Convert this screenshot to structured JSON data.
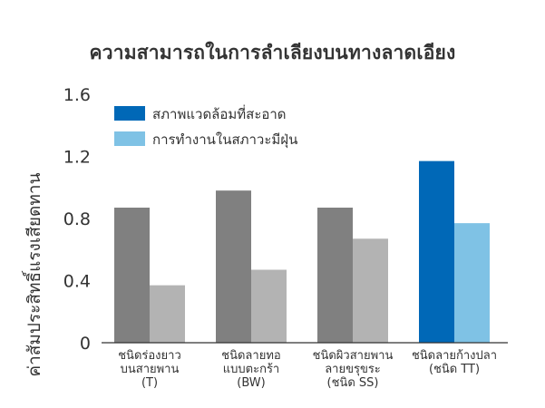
{
  "chart_data": {
    "type": "bar",
    "title": "ความสามารถในการลำเลียงบนทางลาดเอียง",
    "ylabel": "ค่าสัมประสิทธิ์แรงเสียดทาน",
    "xlabel": "",
    "ylim": [
      0,
      1.6
    ],
    "yticks": [
      "0",
      "0.4",
      "0.8",
      "1.2",
      "1.6"
    ],
    "ytick_values": [
      0,
      0.4,
      0.8,
      1.2,
      1.6
    ],
    "grid": false,
    "legend_position": "top-left",
    "categories": [
      [
        "ชนิดร่องยาว",
        "บนสายพาน",
        "(T)"
      ],
      [
        "ชนิดลายทอ",
        "แบบตะกร้า",
        "(BW)"
      ],
      [
        "ชนิดผิวสายพาน",
        "ลายขรุขระ",
        "(ชนิด SS)"
      ],
      [
        "ชนิดลายก้างปลา",
        "(ชนิด TT)"
      ]
    ],
    "series": [
      {
        "name": "สภาพแวดล้อมที่สะอาด",
        "values": [
          0.87,
          0.98,
          0.87,
          1.17
        ],
        "colors": [
          "#808080",
          "#808080",
          "#808080",
          "#0068b7"
        ]
      },
      {
        "name": "การทำงานในสภาวะมีฝุ่น",
        "values": [
          0.37,
          0.47,
          0.67,
          0.77
        ],
        "colors": [
          "#b3b3b3",
          "#b3b3b3",
          "#b3b3b3",
          "#7fc2e5"
        ]
      }
    ],
    "legend_colors": [
      "#0068b7",
      "#7fc2e5"
    ],
    "axis_color": "#333333"
  }
}
